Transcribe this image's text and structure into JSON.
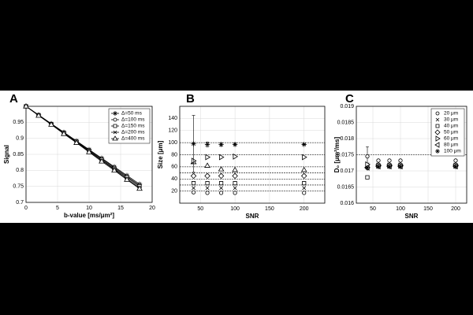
{
  "chart_data": [
    {
      "type": "line",
      "panel_label": "A",
      "xlabel": "b-value [ms/μm²]",
      "ylabel": "Signal",
      "xlim": [
        0,
        20
      ],
      "xticks": [
        0,
        5,
        10,
        15,
        20
      ],
      "ylim": [
        0.7,
        1
      ],
      "yticks": [
        0.7,
        0.75,
        0.8,
        0.85,
        0.9,
        0.95
      ],
      "grid": true,
      "legend": "upper right",
      "x": [
        0,
        2,
        4,
        6,
        8,
        10,
        12,
        14,
        16,
        18
      ],
      "series": [
        {
          "name": "Δ=50 ms",
          "marker": "star",
          "color": "#000000",
          "values": [
            1,
            0.973,
            0.946,
            0.919,
            0.892,
            0.865,
            0.838,
            0.811,
            0.784,
            0.757
          ]
        },
        {
          "name": "Δ=100 ms",
          "marker": "circle",
          "color": "#000000",
          "values": [
            1,
            0.973,
            0.945,
            0.918,
            0.89,
            0.863,
            0.836,
            0.808,
            0.781,
            0.753
          ]
        },
        {
          "name": "Δ=150 ms",
          "marker": "square",
          "color": "#000000",
          "values": [
            1,
            0.972,
            0.944,
            0.917,
            0.889,
            0.861,
            0.833,
            0.805,
            0.778,
            0.75
          ]
        },
        {
          "name": "Δ=200 ms",
          "marker": "x",
          "color": "#000000",
          "values": [
            1,
            0.972,
            0.944,
            0.915,
            0.887,
            0.859,
            0.831,
            0.803,
            0.774,
            0.746
          ]
        },
        {
          "name": "Δ=400 ms",
          "marker": "tri-up",
          "color": "#000000",
          "values": [
            1,
            0.971,
            0.943,
            0.914,
            0.886,
            0.857,
            0.828,
            0.8,
            0.771,
            0.743
          ]
        }
      ]
    },
    {
      "type": "scatter",
      "panel_label": "B",
      "xlabel": "SNR",
      "ylabel": "Size [μm]",
      "xlim": [
        20,
        230
      ],
      "xticks": [
        50,
        100,
        150,
        200
      ],
      "ylim": [
        0,
        160
      ],
      "yticks": [
        20,
        40,
        60,
        80,
        100,
        120,
        140
      ],
      "grid": true,
      "hlines": [
        20,
        30,
        40,
        50,
        60,
        80,
        100
      ],
      "x": [
        40,
        60,
        80,
        100,
        200
      ],
      "series": [
        {
          "marker": "circle",
          "color": "#000000",
          "values": [
            18,
            17,
            17,
            17,
            17
          ]
        },
        {
          "marker": "x",
          "color": "#000000",
          "values": [
            25,
            25,
            25,
            25,
            25
          ]
        },
        {
          "marker": "square",
          "color": "#000000",
          "values": [
            33,
            33,
            33,
            33,
            33
          ]
        },
        {
          "marker": "diamond",
          "color": "#000000",
          "values": [
            45,
            45,
            45,
            45,
            45
          ]
        },
        {
          "marker": "tri-up",
          "color": "#000000",
          "values": [
            68,
            62,
            56,
            55,
            55
          ]
        },
        {
          "marker": "tri-right",
          "color": "#000000",
          "values": [
            70,
            76,
            76,
            77,
            76
          ]
        },
        {
          "marker": "star",
          "color": "#000000",
          "values": [
            98,
            97,
            97,
            97,
            97
          ],
          "errors": [
            47,
            4,
            3,
            2,
            1
          ]
        }
      ]
    },
    {
      "type": "scatter",
      "panel_label": "C",
      "xlabel": "SNR",
      "ylabel": "D₀ [μm²/ms]",
      "xlim": [
        20,
        220
      ],
      "xticks": [
        50,
        100,
        150,
        200
      ],
      "ylim": [
        0.016,
        0.019
      ],
      "yticks": [
        0.016,
        0.0165,
        0.017,
        0.0175,
        0.018,
        0.0185,
        0.019
      ],
      "grid": true,
      "hlines": [
        0.0175
      ],
      "legend": "upper right",
      "x": [
        40,
        60,
        80,
        100,
        200
      ],
      "series": [
        {
          "name": "20 μm",
          "marker": "circle",
          "color": "#000000",
          "values": [
            0.01745,
            0.01732,
            0.01732,
            0.01732,
            0.01732
          ],
          "errors": [
            0.0003,
            2e-05,
            2e-05,
            2e-05,
            2e-05
          ]
        },
        {
          "name": "30 μm",
          "marker": "x",
          "color": "#000000",
          "values": [
            0.0172,
            0.01718,
            0.01718,
            0.01718,
            0.01718
          ]
        },
        {
          "name": "40 μm",
          "marker": "square",
          "color": "#000000",
          "values": [
            0.0168,
            0.01715,
            0.01715,
            0.01715,
            0.01715
          ]
        },
        {
          "name": "50 μm",
          "marker": "diamond",
          "color": "#000000",
          "values": [
            0.0171,
            0.01718,
            0.01718,
            0.01718,
            0.01718
          ]
        },
        {
          "name": "60 μm",
          "marker": "tri-right",
          "color": "#000000",
          "values": [
            0.0172,
            0.01716,
            0.01716,
            0.01716,
            0.01716
          ]
        },
        {
          "name": "80 μm",
          "marker": "tri-left",
          "color": "#000000",
          "values": [
            0.0171,
            0.01714,
            0.01714,
            0.01714,
            0.01714
          ]
        },
        {
          "name": "100 μm",
          "marker": "star",
          "color": "#000000",
          "values": [
            0.0171,
            0.01713,
            0.01713,
            0.01713,
            0.01713
          ]
        }
      ]
    }
  ]
}
